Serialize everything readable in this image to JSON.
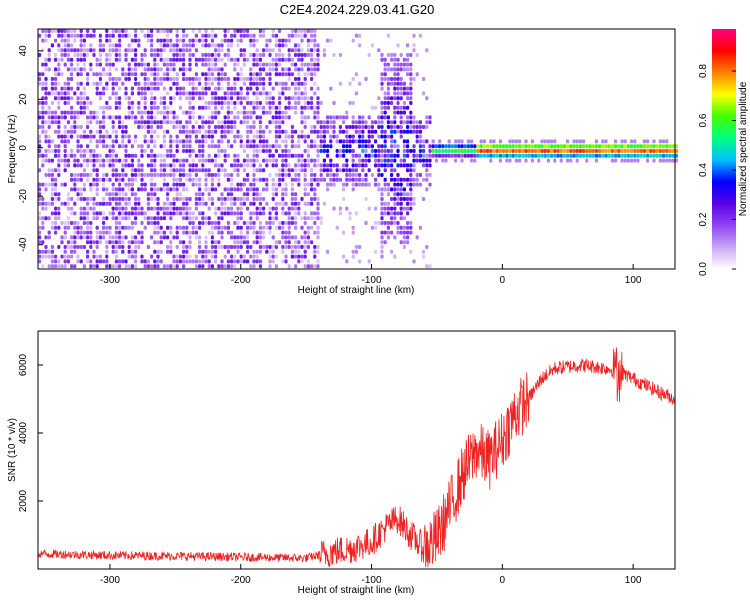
{
  "title": "C2E4.2024.229.03.41.G20",
  "chart_data": [
    {
      "type": "heatmap",
      "xlabel": "Height of straight line (km)",
      "ylabel": "Frequency (Hz)",
      "xlim": [
        -355,
        132
      ],
      "ylim": [
        -50,
        49
      ],
      "x_ticks": [
        -300,
        -200,
        -100,
        0,
        100
      ],
      "x_tick_labels": [
        "-300",
        "-200",
        "-100",
        "0",
        "100"
      ],
      "y_ticks": [
        -40,
        -20,
        0,
        20,
        40
      ],
      "y_tick_labels": [
        "-40",
        "-20",
        "0",
        "20",
        "40"
      ],
      "colorbar": {
        "label": "Normalized spectral amplitude",
        "range": [
          0.0,
          0.97
        ],
        "ticks": [
          0.0,
          0.2,
          0.4,
          0.6,
          0.8
        ],
        "tick_labels": [
          "0.0",
          "0.2",
          "0.4",
          "0.6",
          "0.8"
        ],
        "colormap": [
          "#ffffff",
          "#c9a6f5",
          "#8f45f0",
          "#5a00e6",
          "#0000ff",
          "#00c0ff",
          "#00ff80",
          "#40ff00",
          "#ffff00",
          "#ff8000",
          "#ff0000",
          "#ff0080"
        ]
      },
      "regions": [
        {
          "name": "noise",
          "x_range": [
            -355,
            -140
          ],
          "freq_spread": 49,
          "amplitude": [
            0.05,
            0.25
          ]
        },
        {
          "name": "transition",
          "x_range": [
            -140,
            -55
          ],
          "freq_spread": 15,
          "amplitude": [
            0.1,
            0.45
          ]
        },
        {
          "name": "narrow-band",
          "x_range": [
            -55,
            132
          ],
          "freq_center": 0,
          "freq_spread": 3,
          "amplitude": [
            0.5,
            0.95
          ]
        }
      ]
    },
    {
      "type": "line",
      "xlabel": "Height of straight line (km)",
      "ylabel": "SNR (10 * v/v)",
      "xlim": [
        -355,
        132
      ],
      "ylim": [
        0,
        7000
      ],
      "x_ticks": [
        -300,
        -200,
        -100,
        0,
        100
      ],
      "x_tick_labels": [
        "-300",
        "-200",
        "-100",
        "0",
        "100"
      ],
      "y_ticks": [
        2000,
        4000,
        6000
      ],
      "y_tick_labels": [
        "2000",
        "4000",
        "6000"
      ],
      "series_color": "#ee2222",
      "series": [
        {
          "x": [
            -355,
            -300,
            -250,
            -200,
            -150,
            -130,
            -115,
            -100,
            -90,
            -80,
            -70,
            -60,
            -50,
            -40,
            -30,
            -20,
            -10,
            0,
            10,
            20,
            30,
            40,
            60,
            80,
            90,
            100,
            110,
            120,
            132
          ],
          "y": [
            450,
            400,
            380,
            350,
            320,
            500,
            600,
            800,
            1200,
            1500,
            1000,
            600,
            900,
            1800,
            2800,
            3500,
            3200,
            3800,
            4600,
            5000,
            5600,
            5900,
            6000,
            5900,
            5800,
            5600,
            5400,
            5200,
            5000
          ]
        }
      ]
    }
  ]
}
